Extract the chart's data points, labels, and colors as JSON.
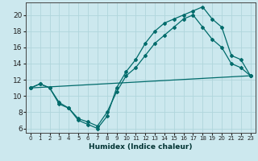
{
  "title": "",
  "xlabel": "Humidex (Indice chaleur)",
  "ylabel": "",
  "background_color": "#cce8ee",
  "grid_color": "#b0d5dc",
  "line_color": "#006b6b",
  "xlim": [
    -0.5,
    23.5
  ],
  "ylim": [
    5.5,
    21.5
  ],
  "xticks": [
    0,
    1,
    2,
    3,
    4,
    5,
    6,
    7,
    8,
    9,
    10,
    11,
    12,
    13,
    14,
    15,
    16,
    17,
    18,
    19,
    20,
    21,
    22,
    23
  ],
  "yticks": [
    6,
    8,
    10,
    12,
    14,
    16,
    18,
    20
  ],
  "series": [
    {
      "x": [
        0,
        1,
        2,
        3,
        4,
        5,
        6,
        7,
        8,
        9,
        10,
        11,
        12,
        13,
        14,
        15,
        16,
        17,
        18,
        19,
        20,
        21,
        22,
        23
      ],
      "y": [
        11.0,
        11.5,
        11.0,
        9.0,
        8.5,
        7.0,
        6.5,
        6.0,
        7.5,
        11.0,
        13.0,
        14.5,
        16.5,
        18.0,
        19.0,
        19.5,
        20.0,
        20.5,
        21.0,
        19.5,
        18.5,
        15.0,
        14.5,
        12.5
      ]
    },
    {
      "x": [
        0,
        1,
        2,
        3,
        4,
        5,
        6,
        7,
        8,
        9,
        10,
        11,
        12,
        13,
        14,
        15,
        16,
        17,
        18,
        19,
        20,
        21,
        22,
        23
      ],
      "y": [
        11.0,
        11.5,
        11.0,
        9.2,
        8.5,
        7.2,
        6.8,
        6.3,
        8.0,
        10.5,
        12.5,
        13.5,
        15.0,
        16.5,
        17.5,
        18.5,
        19.5,
        20.0,
        18.5,
        17.0,
        16.0,
        14.0,
        13.5,
        12.5
      ]
    },
    {
      "x": [
        0,
        23
      ],
      "y": [
        11.0,
        12.5
      ]
    }
  ]
}
